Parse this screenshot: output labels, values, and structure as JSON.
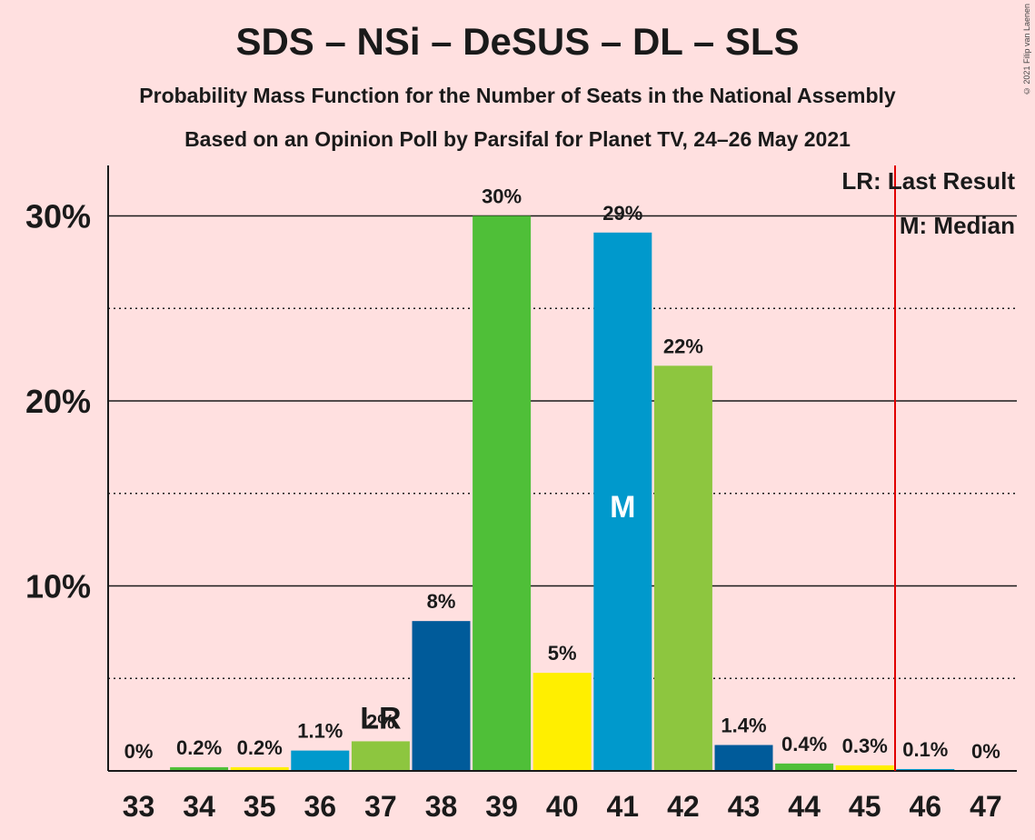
{
  "page": {
    "title": "SDS – NSi – DeSUS – DL – SLS",
    "subtitle1": "Probability Mass Function for the Number of Seats in the National Assembly",
    "subtitle2": "Based on an Opinion Poll by Parsifal for Planet TV, 24–26 May 2021",
    "copyright": "© 2021 Filip van Laenen"
  },
  "chart_data": {
    "type": "bar",
    "title": "SDS – NSi – DeSUS – DL – SLS",
    "xlabel": "",
    "ylabel": "",
    "ylim": [
      0,
      33
    ],
    "yticks": [
      10,
      20,
      30
    ],
    "ytick_labels": [
      "10%",
      "20%",
      "30%"
    ],
    "minor_gridlines": [
      5,
      15,
      25
    ],
    "categories": [
      "33",
      "34",
      "35",
      "36",
      "37",
      "38",
      "39",
      "40",
      "41",
      "42",
      "43",
      "44",
      "45",
      "46",
      "47"
    ],
    "values": [
      0,
      0.2,
      0.2,
      1.1,
      1.6,
      8.1,
      30.0,
      5.3,
      29.1,
      21.9,
      1.4,
      0.4,
      0.3,
      0.1,
      0
    ],
    "labels": [
      "0%",
      "0.2%",
      "0.2%",
      "1.1%",
      "2%",
      "8%",
      "30%",
      "5%",
      "29%",
      "22%",
      "1.4%",
      "0.4%",
      "0.3%",
      "0.1%",
      "0%"
    ],
    "colors": [
      "#005b9a",
      "#4fbf38",
      "#ffef00",
      "#0099cc",
      "#8dc63f",
      "#005b9a",
      "#4fbf38",
      "#ffef00",
      "#0099cc",
      "#8dc63f",
      "#005b9a",
      "#4fbf38",
      "#ffef00",
      "#0099cc",
      "#8dc63f"
    ],
    "last_result": {
      "category": "37",
      "label": "LR"
    },
    "median": {
      "category": "41",
      "label": "M"
    },
    "majority_line_x": 45.5,
    "majority_line_color": "#e00000",
    "legend": [
      "LR: Last Result",
      "M: Median"
    ],
    "legend_placement": "top-right"
  }
}
